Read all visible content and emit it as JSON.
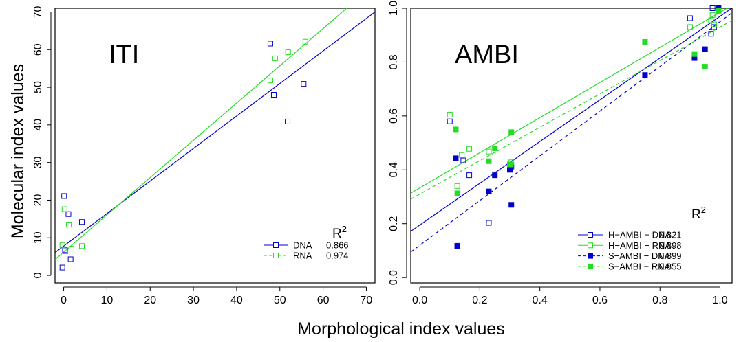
{
  "figure": {
    "ylabel": "Molecular index values",
    "xlabel": "Morphological index values"
  },
  "colors": {
    "blue": "#0000cd",
    "green": "#22dd22",
    "axis": "#000000"
  },
  "chart_data": [
    {
      "type": "scatter",
      "title": "ITI",
      "xlim": [
        -2,
        72
      ],
      "ylim": [
        -2,
        71
      ],
      "xticks": [
        "0",
        "10",
        "20",
        "30",
        "40",
        "50",
        "60",
        "70"
      ],
      "xtick_values": [
        0,
        10,
        20,
        30,
        40,
        50,
        60,
        70
      ],
      "yticks": [
        "0",
        "10",
        "20",
        "30",
        "40",
        "50",
        "60",
        "70"
      ],
      "ytick_values": [
        0,
        10,
        20,
        30,
        40,
        50,
        60,
        70
      ],
      "legend": {
        "position": "bottom-right",
        "r2_label": "R",
        "r2_sup": "2"
      },
      "series": [
        {
          "name": "DNA",
          "r2": "0.866",
          "color": "blue",
          "marker": "open-square",
          "line": "solid",
          "points": [
            [
              -0.3,
              2.1
            ],
            [
              0.1,
              21.1
            ],
            [
              0.3,
              6.7
            ],
            [
              1.1,
              16.3
            ],
            [
              1.6,
              4.3
            ],
            [
              4.2,
              14.2
            ],
            [
              47.8,
              61.6
            ],
            [
              48.6,
              48.0
            ],
            [
              51.8,
              40.9
            ],
            [
              55.5,
              50.9
            ]
          ],
          "fit": {
            "intercept": 7.8,
            "slope": 0.864
          }
        },
        {
          "name": "RNA",
          "r2": "0.974",
          "color": "green",
          "marker": "open-square",
          "line": "dashed",
          "points": [
            [
              -0.3,
              8.0
            ],
            [
              0.2,
              17.6
            ],
            [
              0.4,
              6.4
            ],
            [
              1.2,
              13.5
            ],
            [
              1.8,
              7.1
            ],
            [
              4.2,
              7.8
            ],
            [
              47.8,
              51.8
            ],
            [
              48.9,
              57.7
            ],
            [
              51.9,
              59.3
            ],
            [
              55.9,
              62.1
            ]
          ],
          "fit": {
            "intercept": 6.2,
            "slope": 0.99
          }
        }
      ]
    },
    {
      "type": "scatter",
      "title": "AMBI",
      "xlim": [
        -0.03,
        1.04
      ],
      "ylim": [
        -0.02,
        1.0
      ],
      "xticks": [
        "0.0",
        "0.2",
        "0.4",
        "0.6",
        "0.8",
        "1.0"
      ],
      "xtick_values": [
        0,
        0.2,
        0.4,
        0.6,
        0.8,
        1.0
      ],
      "yticks": [
        "0.0",
        "0.2",
        "0.4",
        "0.6",
        "0.8",
        "1.0"
      ],
      "ytick_values": [
        0,
        0.2,
        0.4,
        0.6,
        0.8,
        1.0
      ],
      "legend": {
        "position": "bottom-right",
        "r2_label": "R",
        "r2_sup": "2"
      },
      "series": [
        {
          "name": "H−AMBI − DNA",
          "r2": "0.821",
          "color": "blue",
          "marker": "open-square",
          "line": "solid",
          "points": [
            [
              0.1,
              0.58
            ],
            [
              0.125,
              0.118
            ],
            [
              0.145,
              0.435
            ],
            [
              0.165,
              0.38
            ],
            [
              0.23,
              0.203
            ],
            [
              0.305,
              0.412
            ],
            [
              0.9,
              0.963
            ],
            [
              0.97,
              0.905
            ],
            [
              0.975,
              1.0
            ],
            [
              0.98,
              0.93
            ]
          ],
          "fit": {
            "intercept": 0.195,
            "slope": 0.775
          }
        },
        {
          "name": "H−AMBI − RNA",
          "r2": "0.898",
          "color": "green",
          "marker": "open-square",
          "line": "solid",
          "points": [
            [
              0.1,
              0.605
            ],
            [
              0.125,
              0.34
            ],
            [
              0.14,
              0.455
            ],
            [
              0.165,
              0.478
            ],
            [
              0.23,
              0.468
            ],
            [
              0.305,
              0.428
            ],
            [
              0.9,
              0.93
            ],
            [
              0.97,
              0.955
            ],
            [
              0.975,
              0.975
            ],
            [
              0.98,
              0.94
            ]
          ],
          "fit": {
            "intercept": 0.333,
            "slope": 0.652
          }
        },
        {
          "name": "S−AMBI − DNA",
          "r2": "0.899",
          "color": "blue",
          "marker": "filled-square",
          "line": "dashed",
          "points": [
            [
              0.12,
              0.443
            ],
            [
              0.125,
              0.116
            ],
            [
              0.23,
              0.32
            ],
            [
              0.25,
              0.38
            ],
            [
              0.3,
              0.4
            ],
            [
              0.305,
              0.27
            ],
            [
              0.75,
              0.752
            ],
            [
              0.915,
              0.815
            ],
            [
              0.95,
              0.848
            ],
            [
              0.995,
              1.0
            ]
          ],
          "fit": {
            "intercept": 0.12,
            "slope": 0.83
          }
        },
        {
          "name": "S−AMBI − RNA",
          "r2": "0.855",
          "color": "green",
          "marker": "filled-square",
          "line": "dashed",
          "points": [
            [
              0.12,
              0.55
            ],
            [
              0.125,
              0.313
            ],
            [
              0.23,
              0.432
            ],
            [
              0.25,
              0.48
            ],
            [
              0.3,
              0.42
            ],
            [
              0.305,
              0.54
            ],
            [
              0.75,
              0.875
            ],
            [
              0.915,
              0.83
            ],
            [
              0.95,
              0.783
            ],
            [
              0.995,
              0.99
            ]
          ],
          "fit": {
            "intercept": 0.31,
            "slope": 0.62
          }
        }
      ]
    }
  ]
}
